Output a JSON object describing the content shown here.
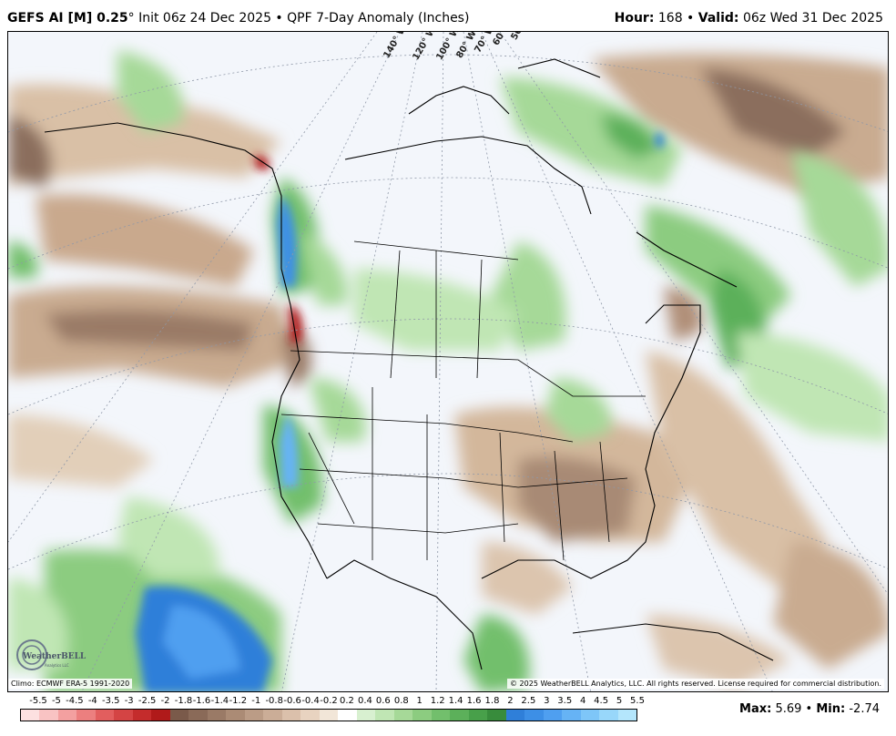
{
  "header": {
    "model": "GEFS AI [M] 0.25",
    "degree": "°",
    "init": " Init 06z 24 Dec 2025",
    "bullet": " • ",
    "product": "QPF 7-Day Anomaly (Inches)",
    "hour_label": "Hour:",
    "hour_value": " 168",
    "valid_label": "Valid:",
    "valid_value": " 06z Wed 31 Dec 2025"
  },
  "map": {
    "longitude_labels": [
      "140° W",
      "120° W",
      "100° W",
      "80° W",
      "70° W",
      "60° W",
      "50° W"
    ],
    "climo_note": "Climo: ECMWF ERA-5 1991-2020",
    "copyright": "© 2025 WeatherBELL Analytics, LLC. All rights reserved. License required for commercial distribution.",
    "logo_text": "WeatherBELL",
    "logo_sub": "Analytics LLC"
  },
  "colorbar": {
    "labels": [
      "-5.5",
      "-5",
      "-4.5",
      "-4",
      "-3.5",
      "-3",
      "-2.5",
      "-2",
      "-1.8",
      "-1.6",
      "-1.4",
      "-1.2",
      "-1",
      "-0.8",
      "-0.6",
      "-0.4",
      "-0.2",
      "0.2",
      "0.4",
      "0.6",
      "0.8",
      "1",
      "1.2",
      "1.4",
      "1.6",
      "1.8",
      "2",
      "2.5",
      "3",
      "3.5",
      "4",
      "4.5",
      "5",
      "5.5"
    ],
    "colors": [
      "#fde0e0",
      "#f9c3c3",
      "#f3a0a0",
      "#ec7f7f",
      "#e25e5e",
      "#d44444",
      "#c42c2c",
      "#b01a1a",
      "#7a5a4a",
      "#8a6a58",
      "#9a7a66",
      "#ab8b75",
      "#bb9c86",
      "#cbad97",
      "#dbc0ab",
      "#e8d3c0",
      "#f2e6d8",
      "#ffffff",
      "#d8f0d0",
      "#c0e6b4",
      "#a6d998",
      "#8ccc80",
      "#72bf6c",
      "#5cb05a",
      "#48a04a",
      "#388c3c",
      "#2f7fd9",
      "#3d8fe6",
      "#4f9ff0",
      "#66b3f5",
      "#7ec6f8",
      "#98d7fa",
      "#b4e6fc"
    ],
    "max_label": "Max:",
    "max_value": " 5.69",
    "sep": " • ",
    "min_label": "Min:",
    "min_value": " -2.74"
  },
  "colors": {
    "dry_dark": "#8b6e5d",
    "dry_light": "#d9c0a6",
    "wet_light": "#a6d998",
    "wet_mid": "#5cb05a",
    "wet_heavy": "#2f7fd9",
    "extreme_dry": "#b01a1a",
    "background": "#f3f6fb"
  }
}
